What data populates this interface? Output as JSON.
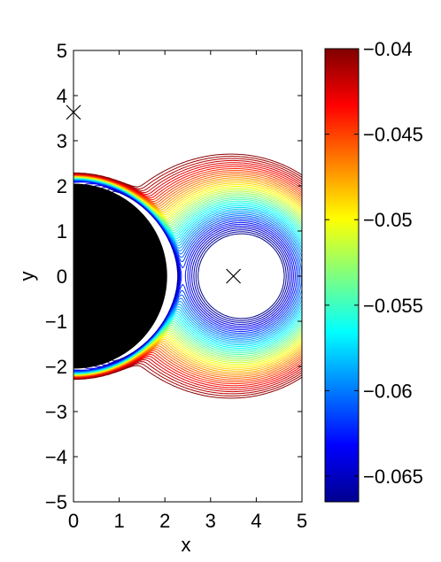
{
  "chart_data": {
    "type": "contour",
    "xlabel": "x",
    "ylabel": "y",
    "xlim": [
      0,
      5
    ],
    "ylim": [
      -5,
      5
    ],
    "xticks": [
      "0",
      "1",
      "2",
      "3",
      "4",
      "5"
    ],
    "yticks": [
      "−5",
      "−4",
      "−3",
      "−2",
      "−1",
      "0",
      "1",
      "2",
      "3",
      "4",
      "5"
    ],
    "colorbar": {
      "range": [
        -0.0665,
        -0.04
      ],
      "ticks": [
        "−0.04",
        "−0.045",
        "−0.05",
        "−0.055",
        "−0.06",
        "−0.065"
      ],
      "tick_values": [
        -0.04,
        -0.045,
        -0.05,
        -0.055,
        -0.06,
        -0.065
      ],
      "colormap": "jet"
    },
    "filled_region": {
      "shape": "half-disk",
      "center": [
        0,
        0
      ],
      "radius": 2.05,
      "color": "#000000"
    },
    "markers": [
      {
        "symbol": "x",
        "x": 0,
        "y": 3.63
      },
      {
        "symbol": "x",
        "x": 3.5,
        "y": 0
      }
    ]
  }
}
